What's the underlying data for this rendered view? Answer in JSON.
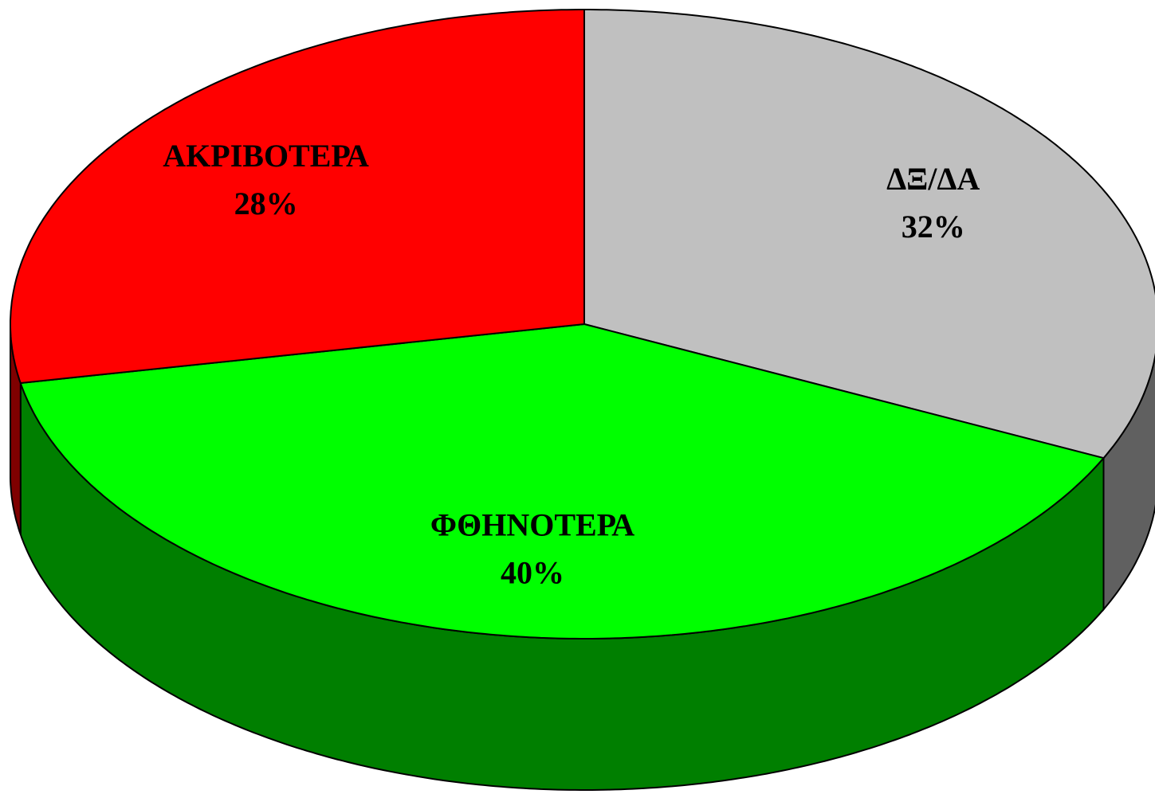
{
  "chart_data": {
    "type": "pie",
    "categories": [
      "ΔΞ/ΔΑ",
      "ΦΘΗΝΟΤΕΡΑ",
      "ΑΚΡΙΒΟΤΕΡΑ"
    ],
    "values": [
      32,
      40,
      28
    ],
    "value_labels": [
      "32%",
      "40%",
      "28%"
    ],
    "colors": [
      "#c0c0c0",
      "#00ff00",
      "#ff0000"
    ]
  }
}
